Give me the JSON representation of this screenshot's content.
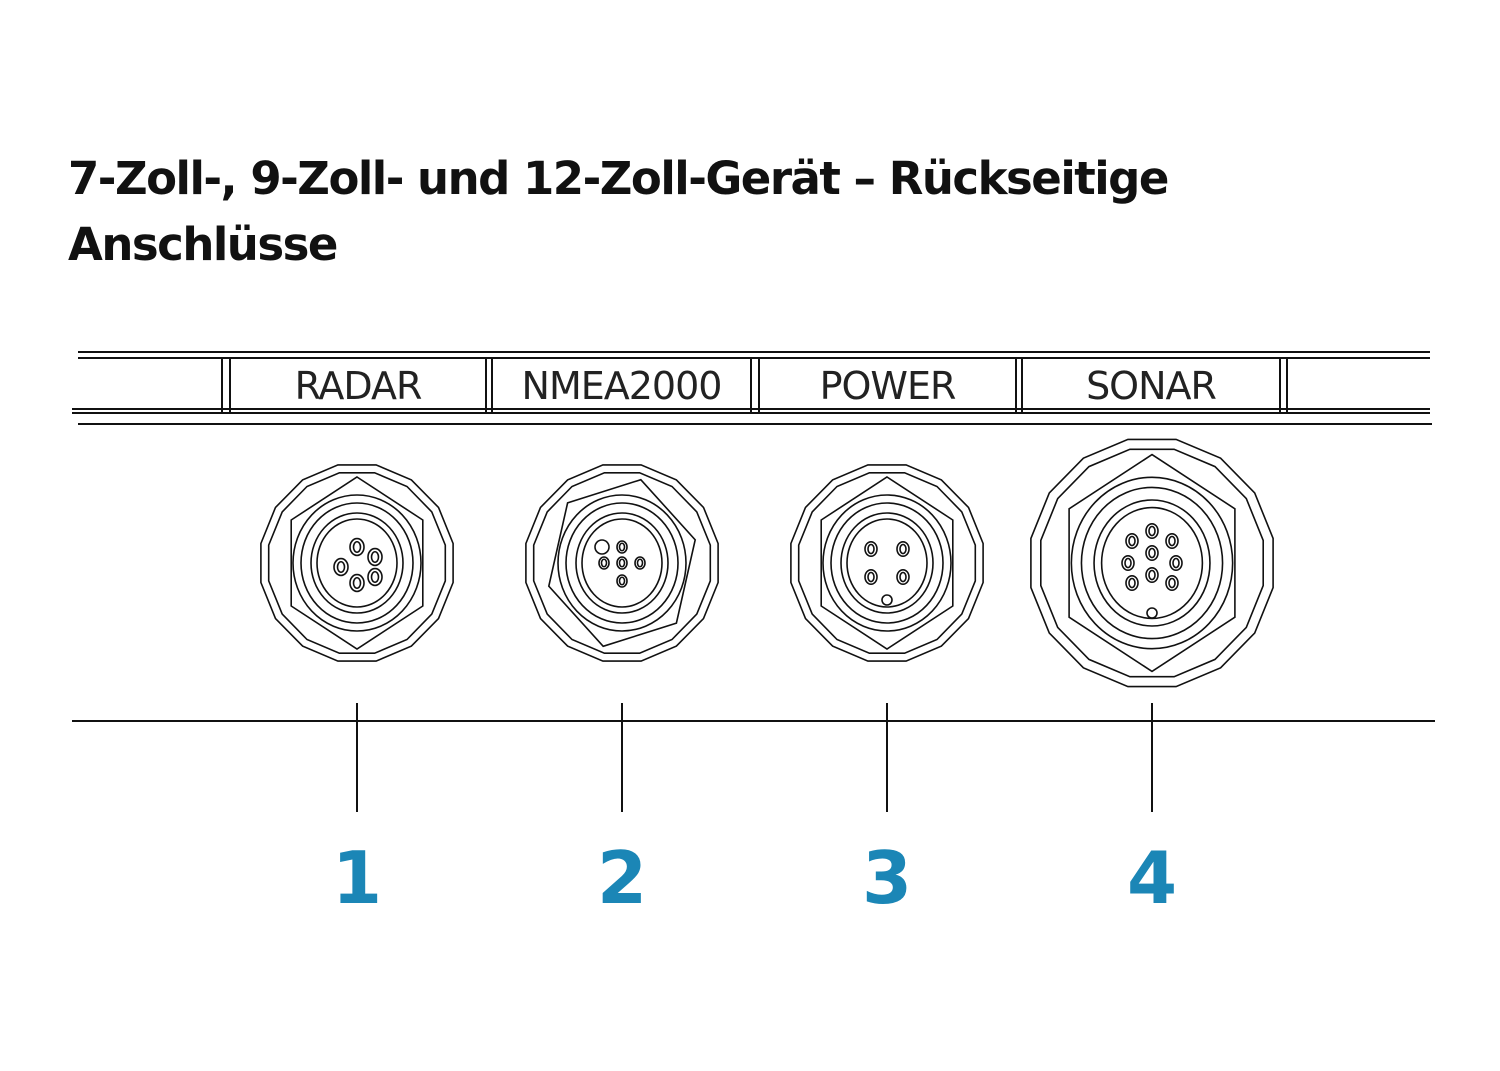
{
  "title": {
    "line1": "7-Zoll-, 9-Zoll- und 12-Zoll-Gerät – Rückseitige",
    "line2": "Anschlüsse"
  },
  "connectors": [
    {
      "label": "RADAR",
      "number": "1",
      "pins": 5
    },
    {
      "label": "NMEA2000",
      "number": "2",
      "pins": 5
    },
    {
      "label": "POWER",
      "number": "3",
      "pins": 4
    },
    {
      "label": "SONAR",
      "number": "4",
      "pins": 9
    }
  ],
  "colors": {
    "number": "#1b86b6",
    "line": "#111111"
  }
}
